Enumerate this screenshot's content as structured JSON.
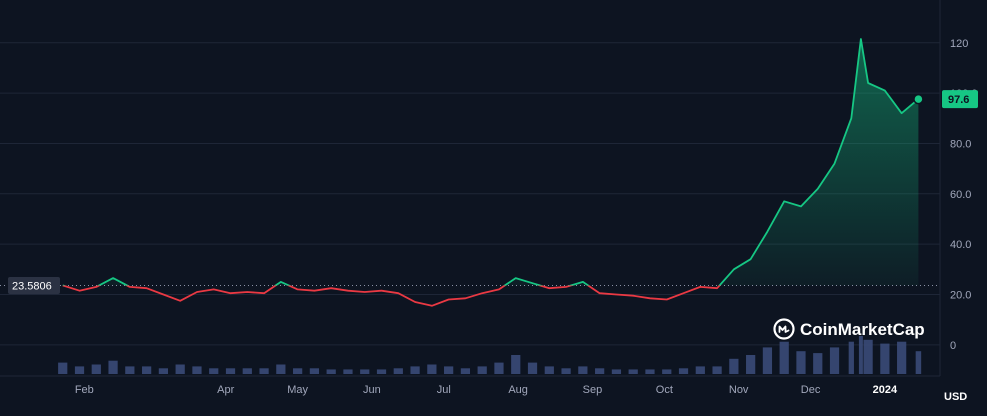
{
  "chart_data": {
    "type": "area",
    "title": "",
    "xlabel": "",
    "ylabel": "",
    "currency": "USD",
    "ylim": [
      -10,
      135
    ],
    "grid": true,
    "yticks": [
      "0",
      "20.0",
      "40.0",
      "60.0",
      "80.0",
      "100.0",
      "120"
    ],
    "xticks": [
      "Feb",
      "Apr",
      "May",
      "Jun",
      "Jul",
      "Aug",
      "Sep",
      "Oct",
      "Nov",
      "Dec",
      "2024"
    ],
    "baseline": {
      "label": "23.5806",
      "value": 23.5806
    },
    "current_price": {
      "label": "97.6",
      "value": 97.6
    },
    "watermark": "CoinMarketCap",
    "colors": {
      "up": "#16c784",
      "down": "#ea3943",
      "background": "#0d1421",
      "grid": "#1e2637",
      "volume": "#3a4a78"
    },
    "series": [
      {
        "name": "",
        "x": [
          "2023-01-23",
          "2023-01-30",
          "2023-02-06",
          "2023-02-13",
          "2023-02-20",
          "2023-02-27",
          "2023-03-06",
          "2023-03-13",
          "2023-03-20",
          "2023-03-27",
          "2023-04-03",
          "2023-04-10",
          "2023-04-17",
          "2023-04-24",
          "2023-05-01",
          "2023-05-08",
          "2023-05-15",
          "2023-05-22",
          "2023-05-29",
          "2023-06-05",
          "2023-06-12",
          "2023-06-19",
          "2023-06-26",
          "2023-07-03",
          "2023-07-10",
          "2023-07-17",
          "2023-07-24",
          "2023-07-31",
          "2023-08-07",
          "2023-08-14",
          "2023-08-21",
          "2023-08-28",
          "2023-09-04",
          "2023-09-11",
          "2023-09-18",
          "2023-09-25",
          "2023-10-02",
          "2023-10-09",
          "2023-10-16",
          "2023-10-23",
          "2023-10-30",
          "2023-11-06",
          "2023-11-13",
          "2023-11-20",
          "2023-11-27",
          "2023-12-04",
          "2023-12-11",
          "2023-12-18",
          "2023-12-22",
          "2023-12-25",
          "2024-01-01",
          "2024-01-08",
          "2024-01-15"
        ],
        "values": [
          23.6,
          21.5,
          23.0,
          26.5,
          23.0,
          22.5,
          20.0,
          17.5,
          21.0,
          22.0,
          20.5,
          21.0,
          20.5,
          25.0,
          22.0,
          21.5,
          22.5,
          21.5,
          21.0,
          21.5,
          20.5,
          17.0,
          15.5,
          18.0,
          18.5,
          20.5,
          22.0,
          26.5,
          24.5,
          22.5,
          23.0,
          25.0,
          20.5,
          20.0,
          19.5,
          18.5,
          18.0,
          20.5,
          23.0,
          22.5,
          30.0,
          34.0,
          45.0,
          57.0,
          55.0,
          62.0,
          72.0,
          90.0,
          121.5,
          104.0,
          101.0,
          92.0,
          97.6
        ]
      }
    ],
    "volume": {
      "x": [
        "2023-01-23",
        "2023-01-30",
        "2023-02-06",
        "2023-02-13",
        "2023-02-20",
        "2023-02-27",
        "2023-03-06",
        "2023-03-13",
        "2023-03-20",
        "2023-03-27",
        "2023-04-03",
        "2023-04-10",
        "2023-04-17",
        "2023-04-24",
        "2023-05-01",
        "2023-05-08",
        "2023-05-15",
        "2023-05-22",
        "2023-05-29",
        "2023-06-05",
        "2023-06-12",
        "2023-06-19",
        "2023-06-26",
        "2023-07-03",
        "2023-07-10",
        "2023-07-17",
        "2023-07-24",
        "2023-07-31",
        "2023-08-07",
        "2023-08-14",
        "2023-08-21",
        "2023-08-28",
        "2023-09-04",
        "2023-09-11",
        "2023-09-18",
        "2023-09-25",
        "2023-10-02",
        "2023-10-09",
        "2023-10-16",
        "2023-10-23",
        "2023-10-30",
        "2023-11-06",
        "2023-11-13",
        "2023-11-20",
        "2023-11-27",
        "2023-12-04",
        "2023-12-11",
        "2023-12-18",
        "2023-12-22",
        "2023-12-25",
        "2024-01-01",
        "2024-01-08",
        "2024-01-15"
      ],
      "values": [
        0.3,
        0.2,
        0.25,
        0.35,
        0.2,
        0.2,
        0.15,
        0.25,
        0.2,
        0.15,
        0.15,
        0.15,
        0.15,
        0.25,
        0.15,
        0.15,
        0.12,
        0.12,
        0.12,
        0.12,
        0.15,
        0.2,
        0.25,
        0.2,
        0.15,
        0.2,
        0.3,
        0.5,
        0.3,
        0.2,
        0.15,
        0.2,
        0.15,
        0.12,
        0.12,
        0.12,
        0.12,
        0.15,
        0.2,
        0.2,
        0.4,
        0.5,
        0.7,
        0.85,
        0.6,
        0.55,
        0.7,
        0.85,
        1.0,
        0.9,
        0.8,
        0.85,
        0.6
      ]
    }
  }
}
